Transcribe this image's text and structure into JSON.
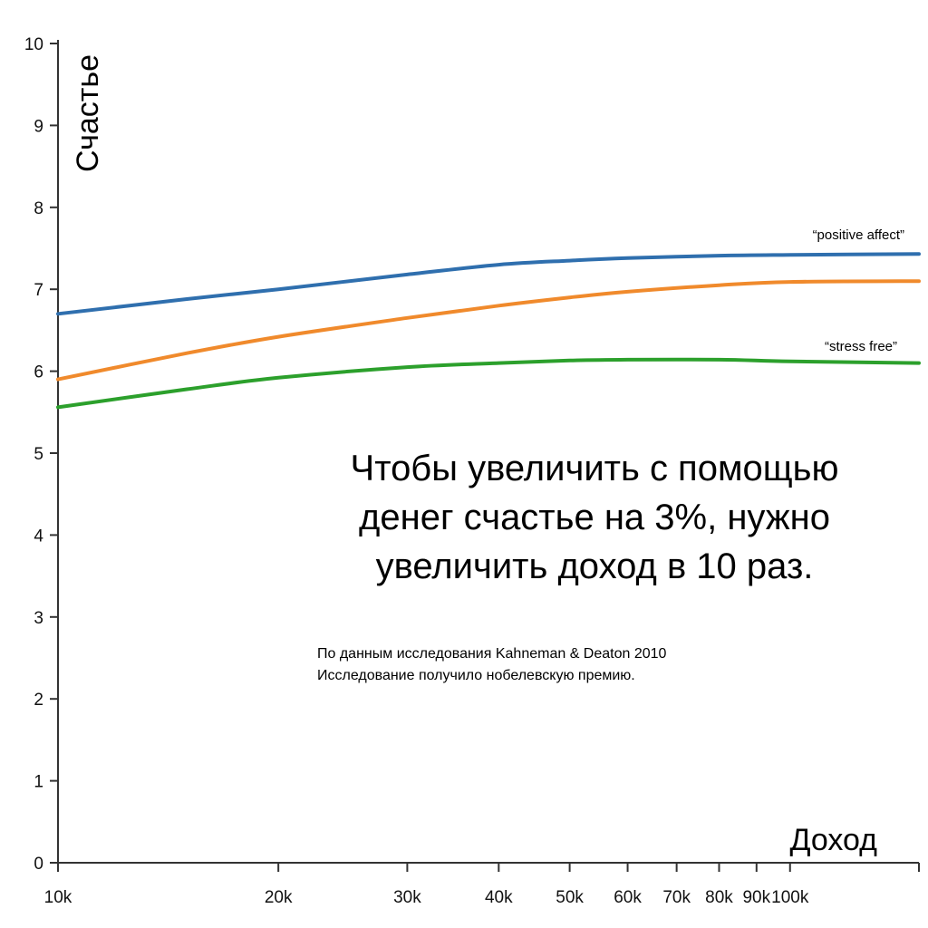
{
  "chart_data": {
    "type": "line",
    "xscale": "log",
    "xlim": [
      10000,
      150000
    ],
    "ylim": [
      0,
      10
    ],
    "xlabel": "Доход",
    "ylabel": "Счастье",
    "x_ticks": [
      10000,
      20000,
      30000,
      40000,
      50000,
      60000,
      70000,
      80000,
      90000,
      100000
    ],
    "x_tick_labels": [
      "10k",
      "20k",
      "30k",
      "40k",
      "50k",
      "60k",
      "70k",
      "80k",
      "90k",
      "100k"
    ],
    "y_ticks": [
      0,
      1,
      2,
      3,
      4,
      5,
      6,
      7,
      8,
      9,
      10
    ],
    "y_tick_labels": [
      "0",
      "1",
      "2",
      "3",
      "4",
      "5",
      "6",
      "7",
      "8",
      "9",
      "10"
    ],
    "grid": false,
    "series": [
      {
        "name": "“positive affect”",
        "color": "#2f6fae",
        "x": [
          10000,
          15000,
          20000,
          30000,
          40000,
          50000,
          60000,
          80000,
          100000,
          150000
        ],
        "y": [
          6.7,
          6.88,
          7.0,
          7.18,
          7.3,
          7.35,
          7.38,
          7.41,
          7.42,
          7.43
        ]
      },
      {
        "name": "",
        "color": "#f08a2c",
        "x": [
          10000,
          15000,
          20000,
          30000,
          40000,
          50000,
          60000,
          80000,
          100000,
          150000
        ],
        "y": [
          5.9,
          6.22,
          6.42,
          6.65,
          6.8,
          6.9,
          6.97,
          7.05,
          7.09,
          7.1
        ]
      },
      {
        "name": "“stress free”",
        "color": "#2ca02c",
        "x": [
          10000,
          15000,
          20000,
          30000,
          40000,
          50000,
          60000,
          80000,
          100000,
          150000
        ],
        "y": [
          5.56,
          5.78,
          5.92,
          6.05,
          6.1,
          6.13,
          6.14,
          6.14,
          6.12,
          6.1
        ]
      }
    ],
    "annotations": {
      "headline": [
        "Чтобы увеличить с помощью",
        "денег счастье на 3%, нужно",
        "увеличить доход в 10 раз."
      ],
      "notes": [
        "По данным исследования Kahneman & Deaton 2010",
        "Исследование получило нобелевскую премию."
      ]
    }
  }
}
